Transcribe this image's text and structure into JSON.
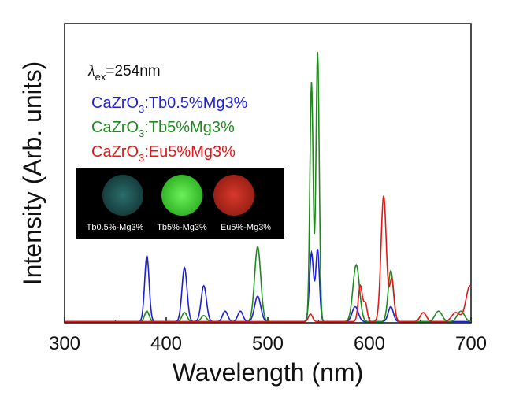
{
  "chart_data": {
    "type": "line",
    "xlabel": "Wavelength (nm)",
    "ylabel": "Intensity (Arb. units)",
    "xlim": [
      300,
      700
    ],
    "ylim": [
      0,
      1.0
    ],
    "x_ticks": [
      300,
      400,
      500,
      600,
      700
    ],
    "grid": false,
    "annotation": {
      "lambda": "λ",
      "subscript": "ex",
      "text": "=254nm"
    },
    "legend": {
      "placement": "top-left",
      "entries": [
        {
          "prefix": "CaZrO",
          "sub": "3",
          "suffix": ":Tb0.5%Mg3%",
          "color": "#1f1fd6"
        },
        {
          "prefix": "CaZrO",
          "sub": "3",
          "suffix": ":Tb5%Mg3%",
          "color": "#1e8a1e"
        },
        {
          "prefix": "CaZrO",
          "sub": "3",
          "suffix": ":Eu5%Mg3%",
          "color": "#e01818"
        }
      ]
    },
    "inset": {
      "labels": [
        "Tb0.5%-Mg3%",
        "Tb5%-Mg3%",
        "Eu5%-Mg3%"
      ],
      "dot_colors": [
        "#1f5a5a",
        "#4ede3a",
        "#c0281c"
      ]
    },
    "series": [
      {
        "color": "#1f1fd6",
        "baseline": 0.004,
        "peaks": [
          [
            381,
            0.22,
            2.2
          ],
          [
            418,
            0.18,
            2.5
          ],
          [
            437,
            0.12,
            2.6
          ],
          [
            458,
            0.035,
            2.5
          ],
          [
            473,
            0.035,
            2.5
          ],
          [
            490,
            0.085,
            3.0
          ],
          [
            543,
            0.23,
            2.0
          ],
          [
            549,
            0.24,
            1.8
          ],
          [
            586,
            0.05,
            3.0
          ],
          [
            621,
            0.05,
            2.5
          ]
        ]
      },
      {
        "color": "#1e8a1e",
        "baseline": 0.004,
        "peaks": [
          [
            381,
            0.035,
            2.2
          ],
          [
            418,
            0.03,
            2.5
          ],
          [
            437,
            0.02,
            2.6
          ],
          [
            490,
            0.25,
            3.0
          ],
          [
            543,
            0.8,
            1.6
          ],
          [
            549,
            0.9,
            1.6
          ],
          [
            587,
            0.19,
            3.2
          ],
          [
            621,
            0.17,
            2.6
          ],
          [
            668,
            0.035,
            3.5
          ],
          [
            690,
            0.035,
            3.5
          ]
        ]
      },
      {
        "color": "#e01818",
        "baseline": 0.004,
        "peaks": [
          [
            542,
            0.025,
            2.0
          ],
          [
            591,
            0.12,
            2.0
          ],
          [
            596,
            0.06,
            1.8
          ],
          [
            614,
            0.42,
            2.6
          ],
          [
            622,
            0.14,
            2.2
          ],
          [
            653,
            0.03,
            3.0
          ],
          [
            685,
            0.03,
            4.0
          ],
          [
            699,
            0.12,
            4.0
          ]
        ]
      }
    ]
  }
}
